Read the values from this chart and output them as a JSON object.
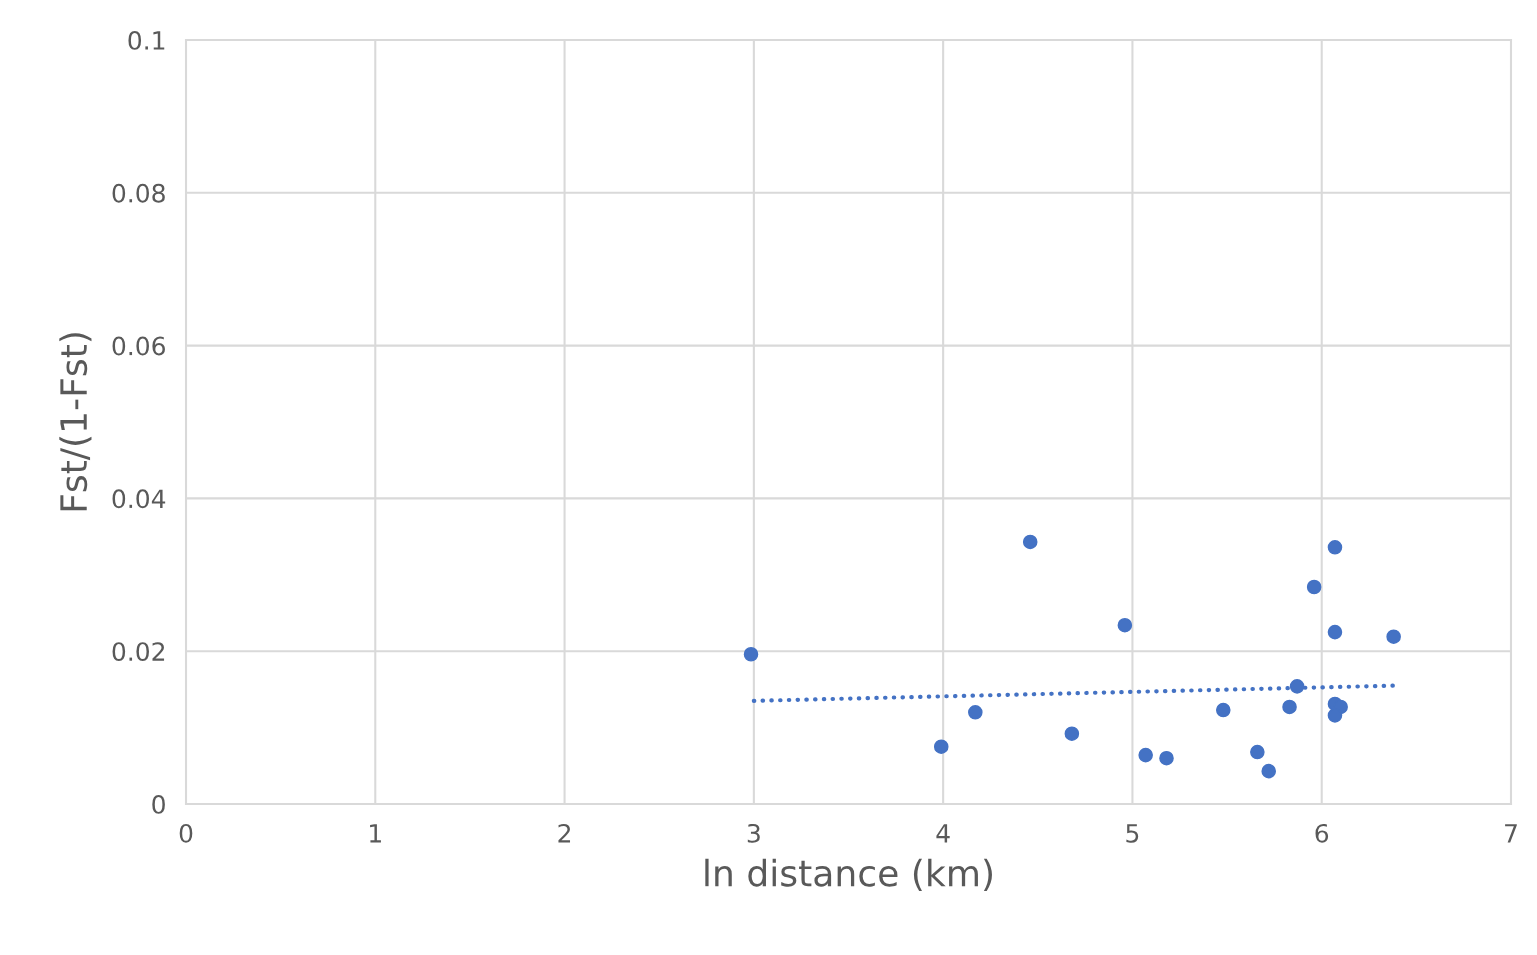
{
  "chart_data": {
    "type": "scatter",
    "xlabel": "ln distance (km)",
    "ylabel": "Fst/(1-Fst)",
    "xlim": [
      0,
      7
    ],
    "xticks": [
      0,
      1,
      2,
      3,
      4,
      5,
      6,
      7
    ],
    "ylim": [
      0,
      0.1
    ],
    "yticks": [
      0,
      0.02,
      0.04,
      0.06,
      0.08,
      0.1
    ],
    "grid": true,
    "marker": "circle",
    "series": [
      {
        "color": "#4472c4",
        "x": [
          2.985,
          3.99,
          4.17,
          4.46,
          4.68,
          4.96,
          5.07,
          5.18,
          5.48,
          5.66,
          5.72,
          5.83,
          5.87,
          5.96,
          6.07,
          6.07,
          6.07,
          6.1,
          6.07,
          6.38
        ],
        "values": [
          0.0196,
          0.0075,
          0.012,
          0.0343,
          0.0092,
          0.0234,
          0.0064,
          0.006,
          0.0123,
          0.0068,
          0.0043,
          0.0127,
          0.0154,
          0.0284,
          0.0336,
          0.0225,
          0.0131,
          0.0127,
          0.0116,
          0.0219
        ]
      },
      {
        "type": "line",
        "color": "#4472c4",
        "line_style": "dotted",
        "marker": "none",
        "x": [
          3.0,
          6.4
        ],
        "values": [
          0.0135,
          0.0155
        ]
      }
    ]
  }
}
